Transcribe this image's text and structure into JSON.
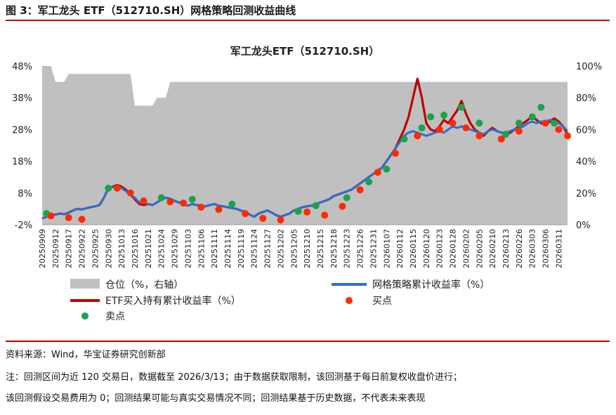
{
  "figure_title": "图 3：军工龙头 ETF（512710.SH）网格策略回测收益曲线",
  "source": "资料来源：Wind，华宝证券研究创新部",
  "note_line1": "注：回测区间为近 120 交易日，数据截至 2026/3/13；由于数据获取限制，该回测基于每日前复权收盘价进行；",
  "note_line2": "该回测假设交易费用为 0；回测结果可能与真实交易情况不同；回测结果基于历史数据，不代表未来表现",
  "colors": {
    "area": "#c0c0c0",
    "etf": "#c00000",
    "grid": "#2e6fce",
    "buy": "#ff2a00",
    "sell": "#1aa34a",
    "rule": "#c00000"
  },
  "chart_data": {
    "type": "line",
    "title": "军工龙头ETF（512710.SH）",
    "ylim_left": [
      -2,
      48
    ],
    "left_ticks": [
      "-2%",
      "8%",
      "18%",
      "28%",
      "38%",
      "48%"
    ],
    "left_tick_values": [
      -2,
      8,
      18,
      28,
      38,
      48
    ],
    "ylim_right": [
      0,
      100
    ],
    "right_ticks": [
      "0%",
      "20%",
      "40%",
      "60%",
      "80%",
      "100%"
    ],
    "right_tick_values": [
      0,
      20,
      40,
      60,
      80,
      100
    ],
    "x_tick_labels": [
      "20250909",
      "20250912",
      "20250917",
      "20250922",
      "20250925",
      "20250930",
      "20251013",
      "20251016",
      "20251021",
      "20251024",
      "20251029",
      "20251103",
      "20251106",
      "20251111",
      "20251114",
      "20251119",
      "20251124",
      "20251127",
      "20251202",
      "20251205",
      "20251210",
      "20251215",
      "20251218",
      "20251223",
      "20251226",
      "20251231",
      "20260107",
      "20260112",
      "20260115",
      "20260120",
      "20260123",
      "20260128",
      "20260202",
      "20260205",
      "20260210",
      "20260213",
      "20260226",
      "20260303",
      "20260306",
      "20260311"
    ],
    "x_tick_indices": [
      0,
      3,
      6,
      9,
      12,
      15,
      18,
      21,
      24,
      27,
      30,
      33,
      36,
      39,
      42,
      45,
      48,
      51,
      54,
      57,
      60,
      63,
      66,
      69,
      72,
      75,
      78,
      81,
      84,
      87,
      90,
      93,
      96,
      99,
      102,
      105,
      108,
      111,
      114,
      117
    ],
    "n_points": 120,
    "series": [
      {
        "name": "仓位（%，右轴）",
        "type": "area",
        "axis": "right",
        "values": [
          100,
          100,
          100,
          90,
          90,
          90,
          95,
          95,
          95,
          95,
          95,
          95,
          95,
          95,
          95,
          95,
          95,
          95,
          95,
          95,
          95,
          75,
          75,
          75,
          75,
          75,
          80,
          80,
          80,
          90,
          90,
          90,
          90,
          90,
          90,
          90,
          90,
          90,
          90,
          90,
          90,
          90,
          90,
          90,
          90,
          90,
          90,
          90,
          90,
          90,
          90,
          90,
          90,
          90,
          90,
          90,
          90,
          90,
          90,
          90,
          90,
          90,
          90,
          90,
          90,
          90,
          90,
          90,
          90,
          90,
          90,
          90,
          90,
          90,
          90,
          90,
          90,
          90,
          90,
          90,
          90,
          90,
          90,
          90,
          90,
          90,
          90,
          90,
          90,
          90,
          90,
          90,
          90,
          90,
          90,
          90,
          90,
          90,
          90,
          90,
          90,
          90,
          90,
          90,
          90,
          90,
          90,
          90,
          90,
          90,
          90,
          90,
          90,
          90,
          90,
          90,
          90,
          90,
          90,
          90
        ]
      },
      {
        "name": "网格策略累计收益率（%）",
        "type": "line",
        "axis": "left",
        "values": [
          0,
          0.5,
          1.0,
          1.2,
          1.5,
          1.3,
          1.8,
          2.5,
          3.0,
          2.8,
          3.2,
          3.5,
          3.8,
          4.2,
          6.5,
          9.5,
          9.8,
          10.0,
          9.5,
          8.5,
          7.5,
          6.5,
          5.0,
          4.8,
          4.5,
          4.2,
          5.0,
          6.0,
          6.5,
          6.2,
          5.5,
          5.0,
          4.5,
          4.0,
          4.5,
          4.2,
          4.0,
          3.8,
          4.2,
          4.5,
          4.0,
          3.8,
          3.5,
          3.2,
          3.0,
          2.5,
          2.0,
          1.2,
          0.5,
          1.5,
          2.0,
          2.5,
          1.8,
          1.0,
          0.5,
          1.0,
          1.5,
          2.5,
          3.0,
          3.5,
          3.8,
          4.0,
          4.5,
          5.0,
          5.5,
          6.0,
          7.0,
          7.5,
          8.0,
          8.5,
          9.0,
          10.0,
          11.0,
          12.0,
          13.0,
          14.0,
          15.0,
          16.0,
          18.0,
          20.0,
          22.0,
          24.0,
          26.0,
          27.0,
          27.5,
          27.0,
          26.5,
          26.0,
          26.5,
          27.0,
          27.5,
          27.0,
          28.0,
          29.0,
          28.5,
          29.0,
          28.5,
          28.0,
          27.5,
          27.0,
          26.5,
          27.5,
          28.0,
          27.5,
          27.0,
          27.0,
          27.5,
          28.0,
          28.5,
          29.0,
          30.0,
          30.5,
          30.0,
          30.5,
          30.5,
          31.0,
          30.5,
          30.0,
          29.0,
          27.5
        ]
      },
      {
        "name": "ETF买入持有累计收益率（%）",
        "type": "line",
        "axis": "left",
        "values": [
          0,
          0.5,
          1.0,
          1.2,
          1.5,
          1.3,
          1.8,
          2.5,
          3.0,
          2.8,
          3.2,
          3.5,
          3.8,
          4.2,
          6.5,
          9.5,
          10.0,
          10.5,
          10.0,
          9.0,
          7.5,
          6.0,
          4.5,
          4.2,
          4.5,
          4.2,
          5.0,
          6.0,
          6.5,
          6.2,
          5.5,
          5.0,
          4.5,
          4.0,
          4.5,
          4.2,
          4.0,
          3.8,
          4.2,
          4.5,
          4.0,
          3.8,
          3.5,
          3.2,
          3.0,
          2.5,
          2.0,
          1.2,
          0.5,
          1.5,
          2.0,
          2.5,
          1.8,
          1.0,
          0.5,
          1.0,
          1.5,
          2.5,
          3.0,
          3.5,
          3.8,
          4.0,
          4.5,
          5.0,
          5.5,
          6.0,
          7.0,
          7.5,
          8.0,
          8.5,
          9.0,
          10.0,
          11.0,
          12.0,
          13.0,
          14.0,
          15.0,
          16.0,
          18.0,
          20.0,
          22.0,
          25.0,
          28.0,
          32.0,
          38.0,
          44.0,
          38.0,
          30.0,
          28.0,
          27.5,
          29.0,
          31.0,
          30.0,
          32.0,
          34.0,
          37.0,
          33.0,
          30.0,
          28.0,
          27.0,
          26.0,
          27.5,
          28.5,
          27.5,
          27.0,
          26.5,
          27.0,
          28.0,
          29.0,
          30.0,
          31.0,
          32.0,
          31.0,
          30.0,
          29.5,
          30.5,
          31.5,
          30.5,
          29.0,
          26.5
        ]
      }
    ],
    "buy_points": [
      [
        2,
        0.8
      ],
      [
        6,
        0.2
      ],
      [
        9,
        -0.3
      ],
      [
        17,
        9.5
      ],
      [
        20,
        8.0
      ],
      [
        23,
        5.5
      ],
      [
        29,
        5.2
      ],
      [
        32,
        4.8
      ],
      [
        36,
        3.5
      ],
      [
        40,
        2.8
      ],
      [
        46,
        1.5
      ],
      [
        50,
        0.0
      ],
      [
        54,
        -0.5
      ],
      [
        60,
        2.0
      ],
      [
        64,
        1.0
      ],
      [
        68,
        3.8
      ],
      [
        72,
        9.0
      ],
      [
        76,
        14.5
      ],
      [
        80,
        20.5
      ],
      [
        85,
        26.0
      ],
      [
        90,
        28.0
      ],
      [
        93,
        30.0
      ],
      [
        96,
        28.5
      ],
      [
        99,
        26.0
      ],
      [
        104,
        25.0
      ],
      [
        108,
        27.5
      ],
      [
        114,
        30.0
      ],
      [
        117,
        28.0
      ],
      [
        119,
        26.0
      ]
    ],
    "sell_points": [
      [
        1,
        1.5
      ],
      [
        15,
        9.5
      ],
      [
        27,
        6.5
      ],
      [
        34,
        6.0
      ],
      [
        43,
        4.5
      ],
      [
        58,
        2.2
      ],
      [
        62,
        4.0
      ],
      [
        69,
        6.5
      ],
      [
        74,
        11.5
      ],
      [
        78,
        15.5
      ],
      [
        82,
        25.0
      ],
      [
        86,
        28.5
      ],
      [
        88,
        32.0
      ],
      [
        91,
        32.5
      ],
      [
        95,
        35.0
      ],
      [
        99,
        30.0
      ],
      [
        105,
        26.5
      ],
      [
        108,
        30.0
      ],
      [
        111,
        32.0
      ],
      [
        113,
        35.0
      ],
      [
        116,
        30.0
      ]
    ],
    "legend": [
      {
        "key": "position",
        "label": "仓位（%，右轴）"
      },
      {
        "key": "grid",
        "label": "网格策略累计收益率（%）"
      },
      {
        "key": "etf",
        "label": "ETF买入持有累计收益率（%）"
      },
      {
        "key": "buy",
        "label": "买点"
      },
      {
        "key": "sell",
        "label": "卖点"
      }
    ],
    "legend_position": "bottom"
  }
}
